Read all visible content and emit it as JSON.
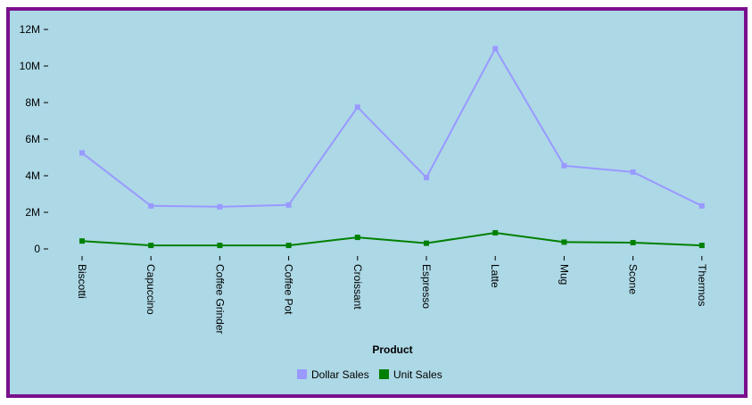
{
  "chart_data": {
    "type": "line",
    "xlabel": "Product",
    "ylabel": "",
    "ylim": [
      0,
      12000000
    ],
    "y_ticks": [
      {
        "value": 0,
        "label": "0"
      },
      {
        "value": 2000000,
        "label": "2M"
      },
      {
        "value": 4000000,
        "label": "4M"
      },
      {
        "value": 6000000,
        "label": "6M"
      },
      {
        "value": 8000000,
        "label": "8M"
      },
      {
        "value": 10000000,
        "label": "10M"
      },
      {
        "value": 12000000,
        "label": "12M"
      }
    ],
    "categories": [
      "Biscotti",
      "Capuccino",
      "Coffee Grinder",
      "Coffee Pot",
      "Croissant",
      "Espresso",
      "Latte",
      "Mug",
      "Scone",
      "Thermos"
    ],
    "series": [
      {
        "name": "Dollar Sales",
        "color": "#9999ff",
        "values": [
          5250000,
          2350000,
          2300000,
          2400000,
          7750000,
          3900000,
          10950000,
          4550000,
          4200000,
          2350000
        ]
      },
      {
        "name": "Unit Sales",
        "color": "#008000",
        "values": [
          430000,
          190000,
          190000,
          190000,
          630000,
          310000,
          880000,
          370000,
          340000,
          190000
        ]
      }
    ],
    "legend_position": "bottom-center",
    "grid": false,
    "background_color": "#add8e6",
    "border_color": "#7a0f8c"
  }
}
